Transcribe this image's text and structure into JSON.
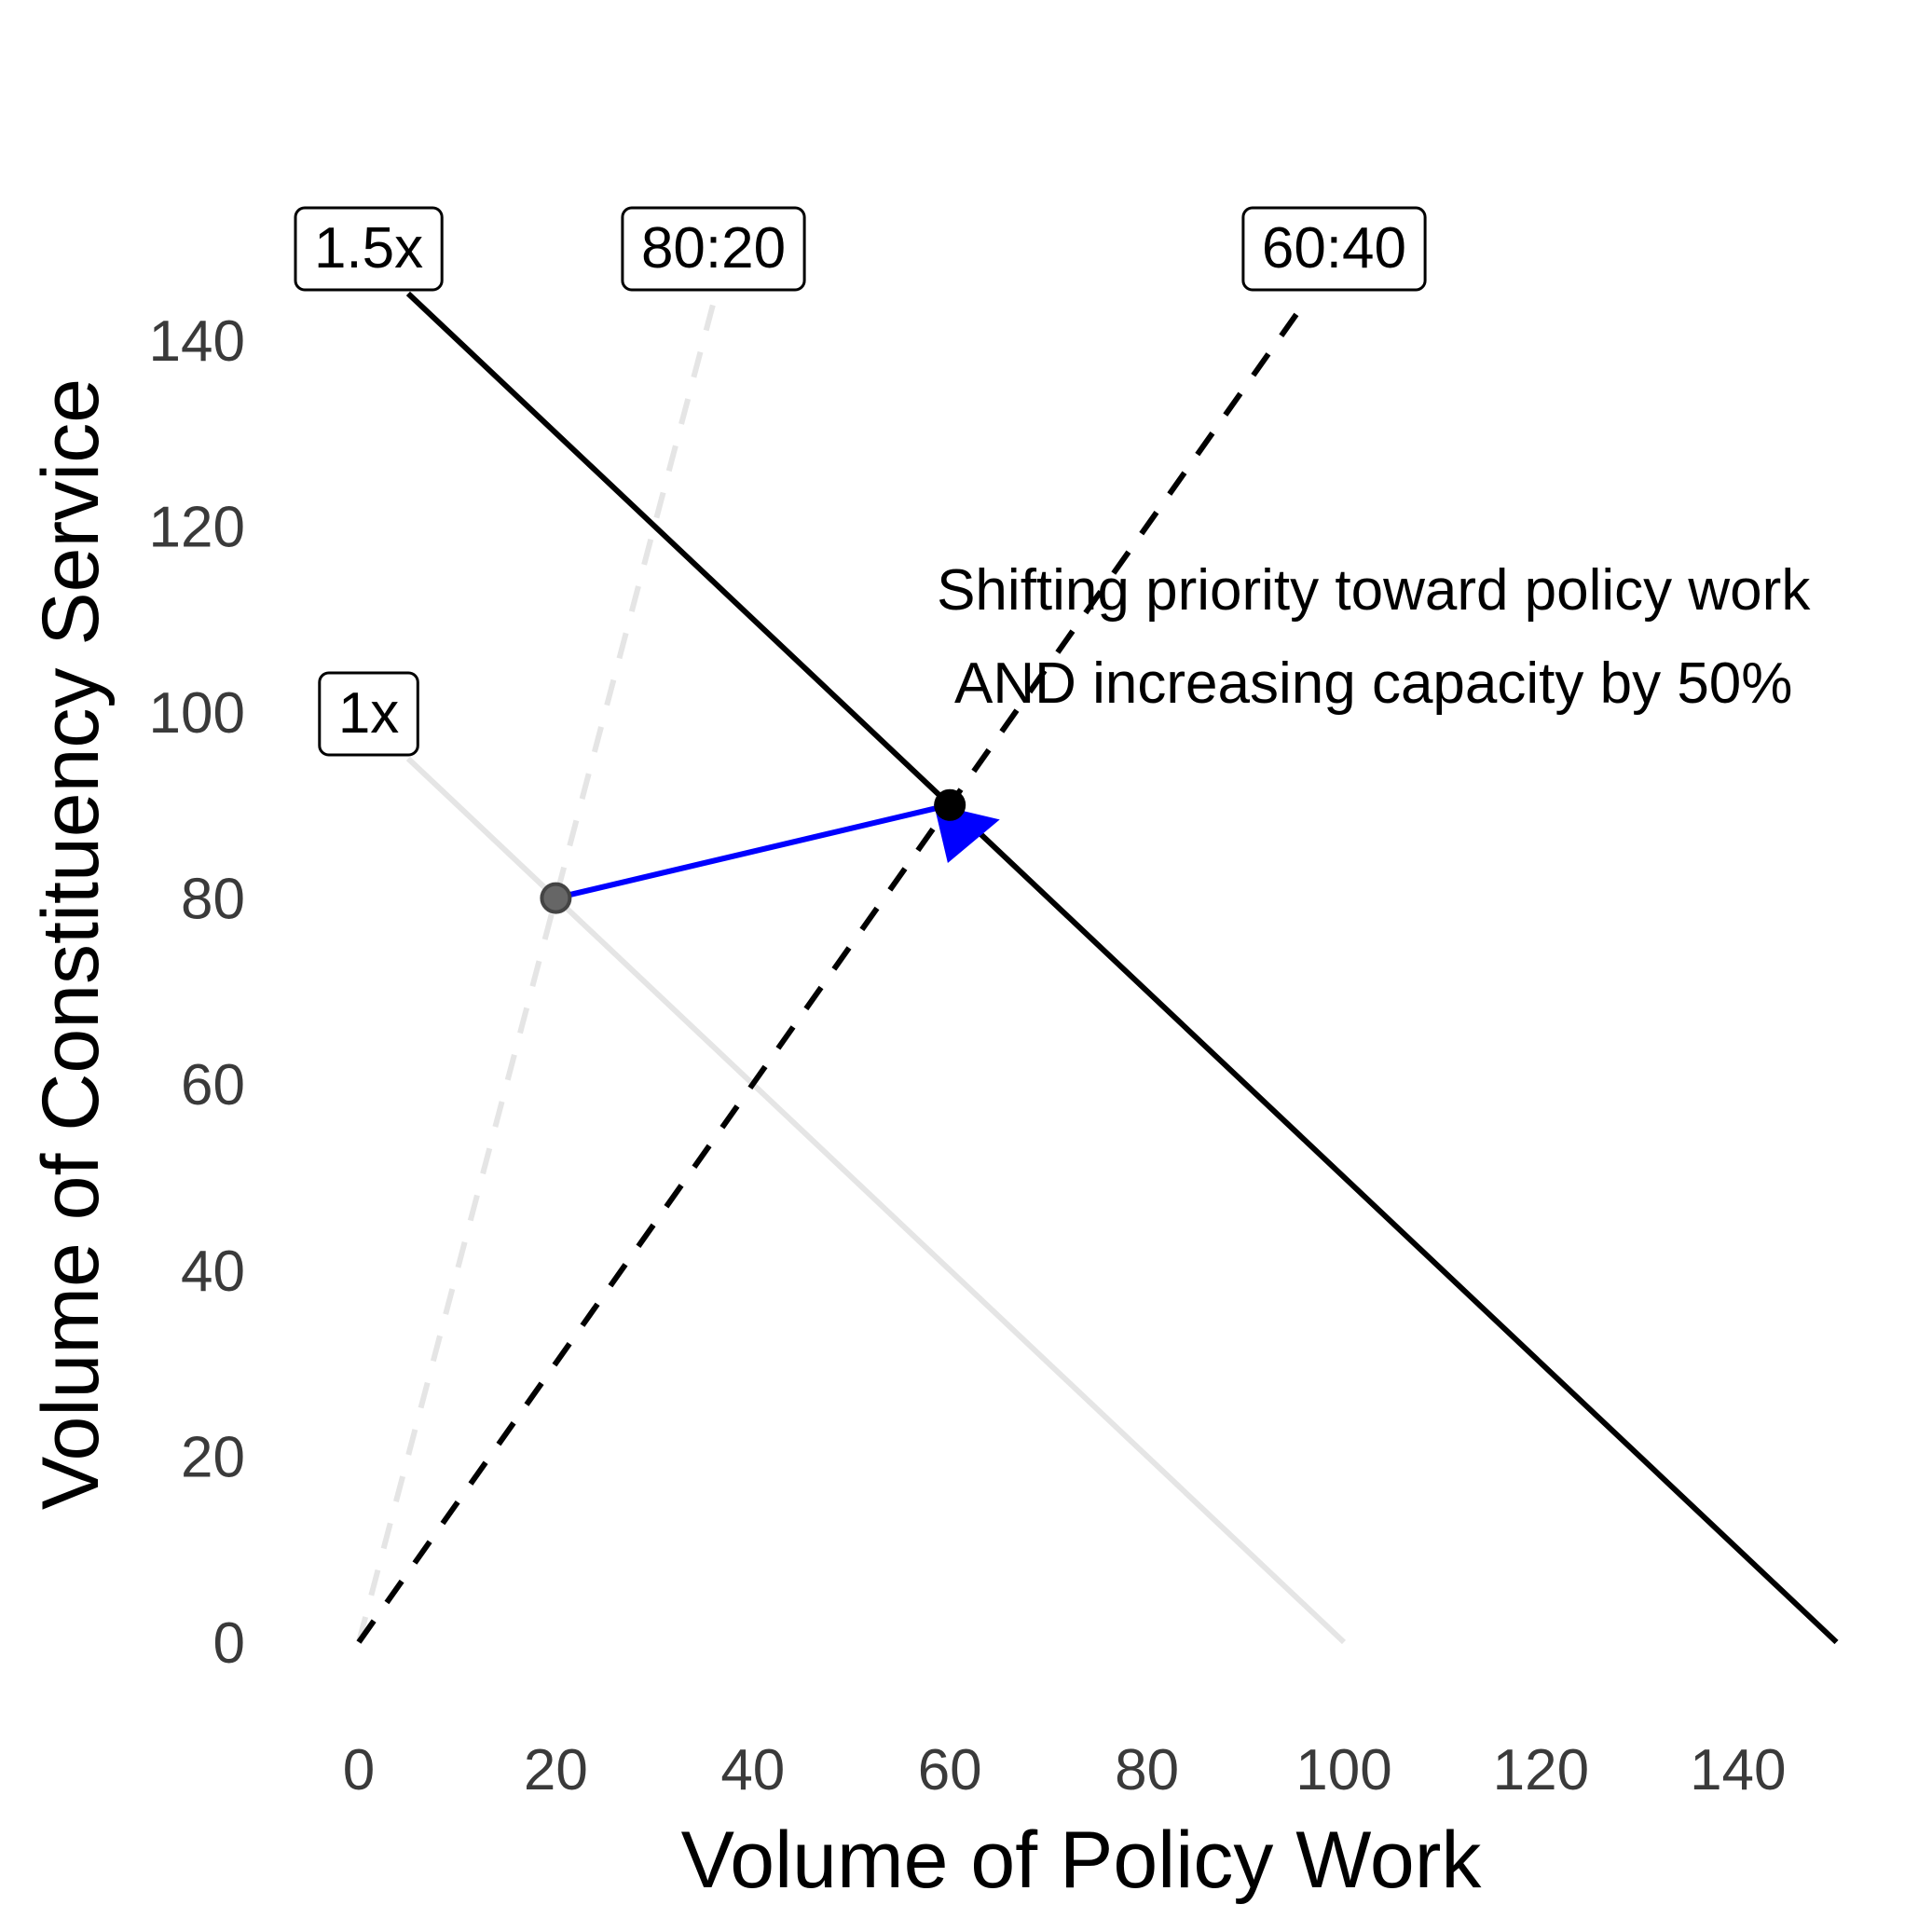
{
  "chart_data": {
    "type": "line",
    "title": "",
    "xlabel": "Volume of Policy Work",
    "ylabel": "Volume of Constituency Service",
    "xlim": [
      -8,
      152
    ],
    "ylim": [
      -8,
      155
    ],
    "x_ticks": [
      0,
      20,
      40,
      60,
      80,
      100,
      120,
      140
    ],
    "y_ticks": [
      0,
      20,
      40,
      60,
      80,
      100,
      120,
      140
    ],
    "grid": false,
    "series": [
      {
        "name": "1x",
        "style": "solid",
        "color": "#e5e5e5",
        "points": [
          [
            5,
            95
          ],
          [
            100,
            0
          ]
        ]
      },
      {
        "name": "1.5x",
        "style": "solid",
        "color": "#000000",
        "points": [
          [
            5,
            145
          ],
          [
            150,
            0
          ]
        ]
      },
      {
        "name": "80:20",
        "style": "dashed",
        "color": "#e5e5e5",
        "points": [
          [
            0,
            0
          ],
          [
            36,
            144
          ]
        ]
      },
      {
        "name": "60:40",
        "style": "dashed",
        "color": "#000000",
        "points": [
          [
            0,
            0
          ],
          [
            96,
            144
          ]
        ]
      }
    ],
    "labels": [
      {
        "text": "1x",
        "x": 1,
        "y": 100
      },
      {
        "text": "1.5x",
        "x": 1,
        "y": 150
      },
      {
        "text": "80:20",
        "x": 36,
        "y": 150
      },
      {
        "text": "60:40",
        "x": 99,
        "y": 150
      }
    ],
    "points": [
      {
        "x": 20,
        "y": 80,
        "color": "#666666"
      },
      {
        "x": 60,
        "y": 90,
        "color": "#000000"
      }
    ],
    "arrow": {
      "from": [
        20,
        80
      ],
      "to": [
        60,
        90
      ],
      "color": "#0000ff"
    },
    "annotation": {
      "lines": [
        "Shifting priority toward policy work",
        "AND increasing capacity by 50%"
      ],
      "x": 103,
      "y": 110
    }
  }
}
